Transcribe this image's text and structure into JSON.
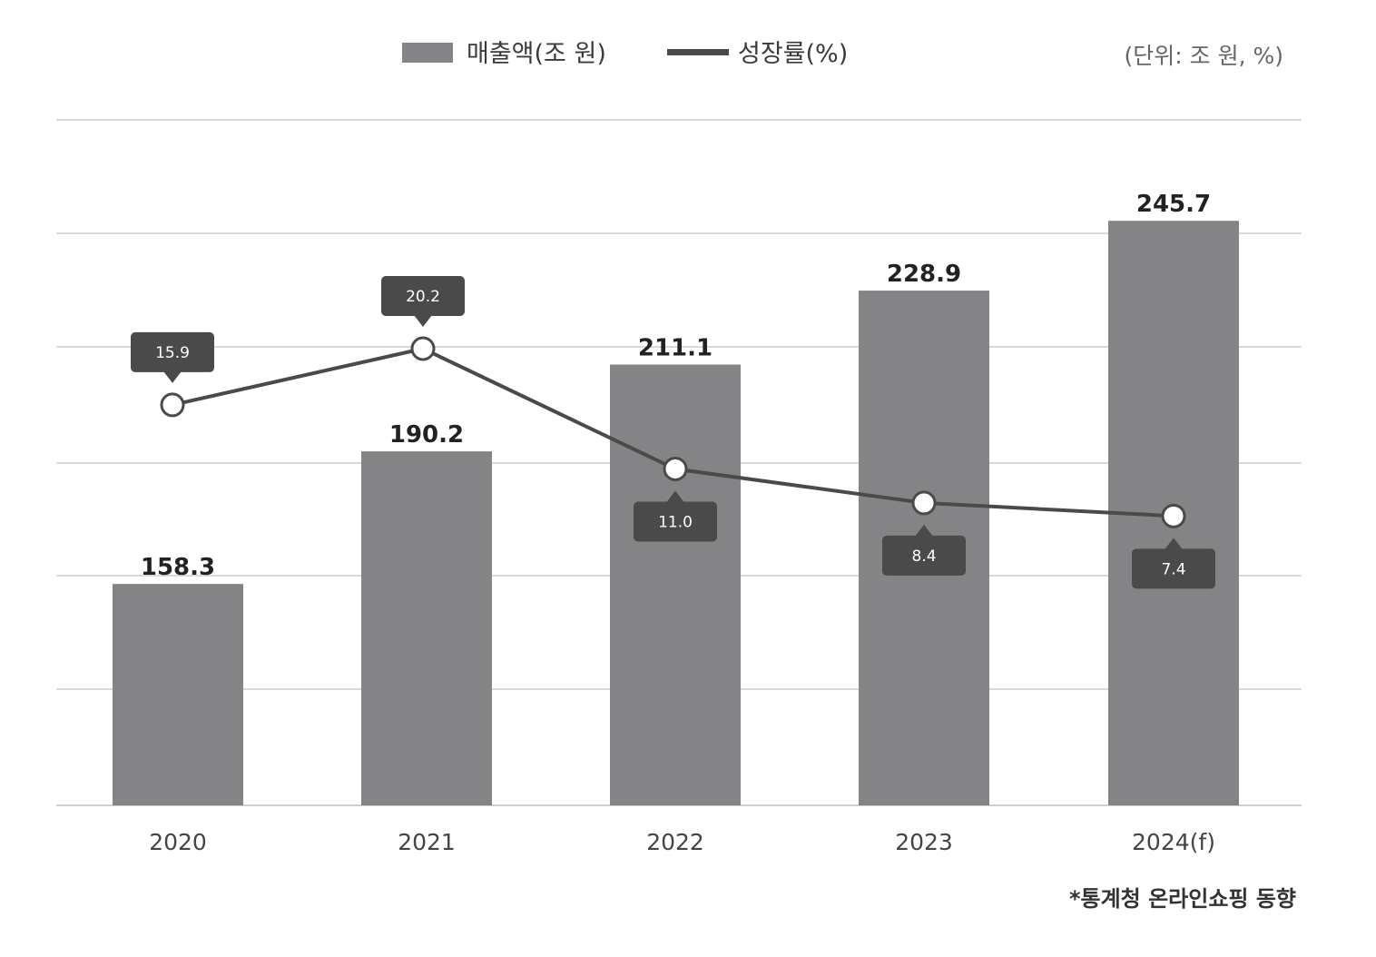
{
  "chart_data": {
    "type": "bar",
    "categories": [
      "2020",
      "2021",
      "2022",
      "2023",
      "2024(f)"
    ],
    "series": [
      {
        "name": "매출액(조 원)",
        "type": "bar",
        "values": [
          158.3,
          190.2,
          211.1,
          228.9,
          245.7
        ]
      },
      {
        "name": "성장률(%)",
        "type": "line",
        "values": [
          15.9,
          20.2,
          11.0,
          8.4,
          7.4
        ]
      }
    ],
    "unit_note": "(단위: 조 원, %)",
    "source": "*통계청 온라인쇼핑 동향",
    "ylim": [
      105,
      270
    ],
    "grid": true,
    "legend_position": "top-center",
    "colors": {
      "bar": "#848486",
      "line": "#4a4a4a",
      "callout": "#4a4a4a",
      "grid": "#d9d9d9"
    }
  }
}
